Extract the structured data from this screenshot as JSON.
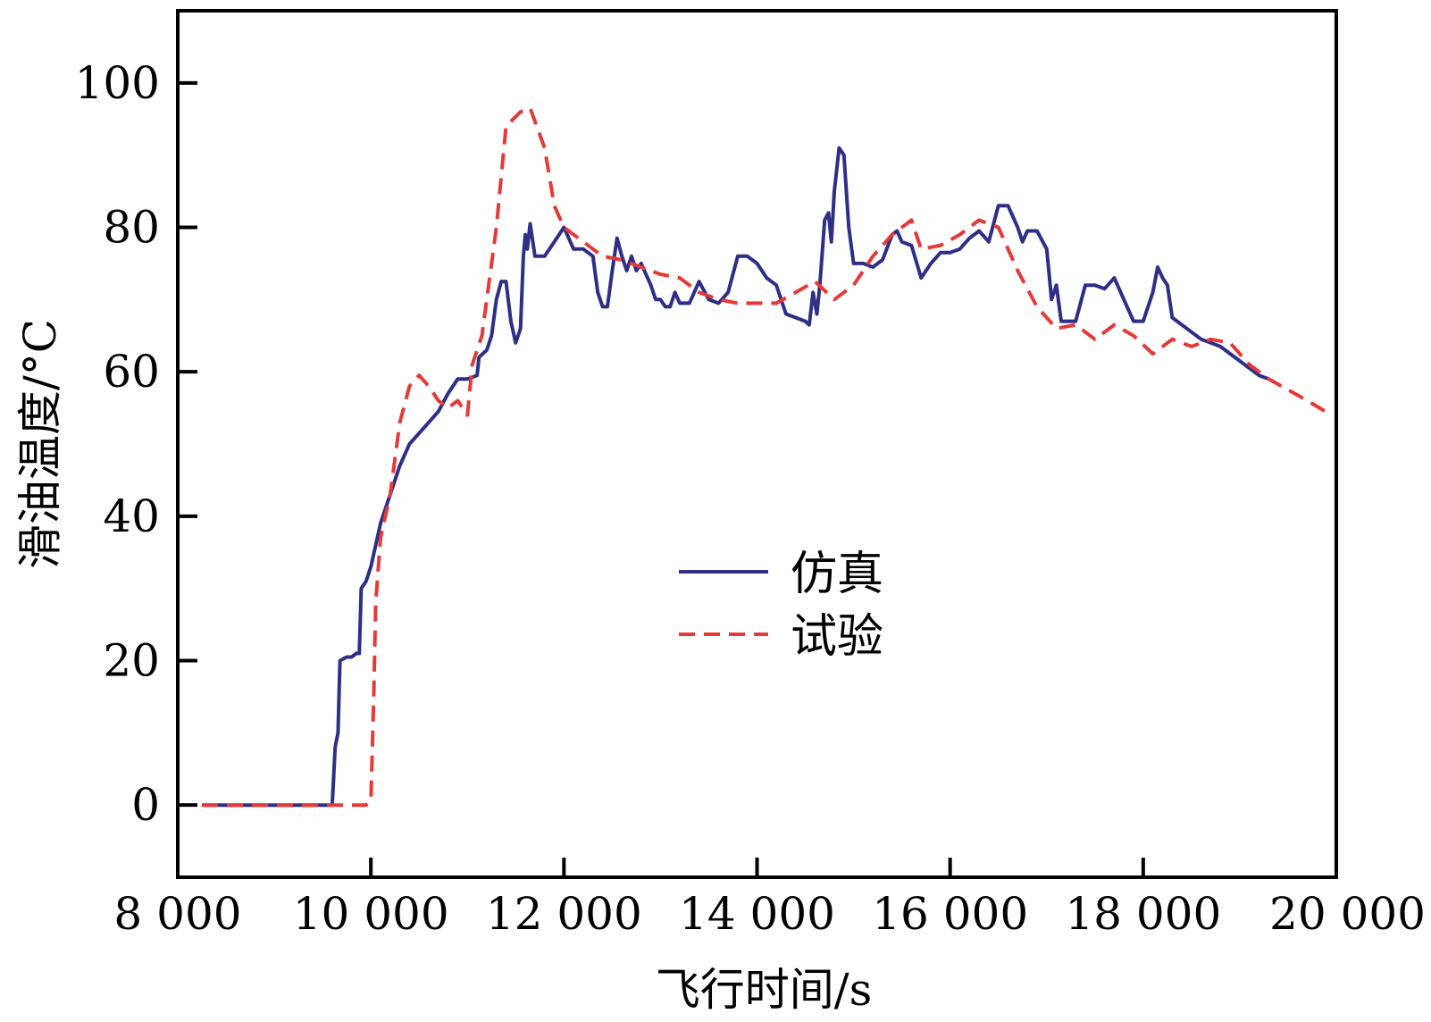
{
  "chart_data": {
    "type": "line",
    "xlabel": "飞行时间/s",
    "ylabel": "滑油温度/°C",
    "xlim": [
      8000,
      20000
    ],
    "ylim": [
      -10,
      110
    ],
    "x_ticks": [
      8000,
      10000,
      12000,
      14000,
      16000,
      18000,
      20000
    ],
    "x_tick_labels": [
      "8 000",
      "10 000",
      "12 000",
      "14 000",
      "16 000",
      "18 000",
      "20 000"
    ],
    "y_ticks": [
      0,
      20,
      40,
      60,
      80,
      100
    ],
    "y_tick_labels": [
      "0",
      "20",
      "40",
      "60",
      "80",
      "100"
    ],
    "grid": false,
    "legend_position": "center",
    "series": [
      {
        "name": "仿真",
        "color": "#2e2f86",
        "style": "solid",
        "points": [
          [
            8250,
            0
          ],
          [
            9600,
            0
          ],
          [
            9630,
            8
          ],
          [
            9660,
            10
          ],
          [
            9680,
            20
          ],
          [
            9750,
            20.5
          ],
          [
            9800,
            20.5
          ],
          [
            9850,
            21
          ],
          [
            9880,
            21
          ],
          [
            9900,
            30
          ],
          [
            9950,
            31
          ],
          [
            10000,
            33
          ],
          [
            10050,
            36
          ],
          [
            10100,
            39
          ],
          [
            10150,
            41
          ],
          [
            10200,
            43
          ],
          [
            10300,
            47
          ],
          [
            10400,
            50
          ],
          [
            10500,
            51.5
          ],
          [
            10600,
            53
          ],
          [
            10700,
            54.5
          ],
          [
            10800,
            57
          ],
          [
            10900,
            59
          ],
          [
            11000,
            59
          ],
          [
            11100,
            59.5
          ],
          [
            11120,
            62
          ],
          [
            11200,
            63
          ],
          [
            11250,
            65
          ],
          [
            11300,
            70
          ],
          [
            11350,
            72.5
          ],
          [
            11400,
            72.5
          ],
          [
            11450,
            67
          ],
          [
            11500,
            64
          ],
          [
            11550,
            66
          ],
          [
            11580,
            76
          ],
          [
            11600,
            79
          ],
          [
            11620,
            77
          ],
          [
            11650,
            80.5
          ],
          [
            11700,
            76
          ],
          [
            11800,
            76
          ],
          [
            11900,
            78
          ],
          [
            12000,
            80
          ],
          [
            12100,
            77
          ],
          [
            12200,
            77
          ],
          [
            12300,
            76
          ],
          [
            12350,
            71
          ],
          [
            12400,
            69
          ],
          [
            12450,
            69
          ],
          [
            12500,
            74
          ],
          [
            12550,
            78.5
          ],
          [
            12600,
            76
          ],
          [
            12650,
            74
          ],
          [
            12700,
            76
          ],
          [
            12750,
            74
          ],
          [
            12800,
            75
          ],
          [
            12900,
            72
          ],
          [
            12950,
            70
          ],
          [
            13000,
            70
          ],
          [
            13050,
            69
          ],
          [
            13100,
            69
          ],
          [
            13150,
            71
          ],
          [
            13200,
            69.5
          ],
          [
            13300,
            69.5
          ],
          [
            13400,
            72.5
          ],
          [
            13500,
            70
          ],
          [
            13600,
            69.5
          ],
          [
            13700,
            71
          ],
          [
            13800,
            76
          ],
          [
            13900,
            76
          ],
          [
            14000,
            75
          ],
          [
            14100,
            73
          ],
          [
            14200,
            72
          ],
          [
            14300,
            68
          ],
          [
            14400,
            67.5
          ],
          [
            14500,
            67
          ],
          [
            14540,
            66.5
          ],
          [
            14580,
            71
          ],
          [
            14620,
            68
          ],
          [
            14650,
            72
          ],
          [
            14700,
            81
          ],
          [
            14740,
            82
          ],
          [
            14770,
            78
          ],
          [
            14800,
            85
          ],
          [
            14850,
            91
          ],
          [
            14900,
            90
          ],
          [
            14950,
            80
          ],
          [
            15000,
            75
          ],
          [
            15100,
            75
          ],
          [
            15200,
            74.5
          ],
          [
            15300,
            75.5
          ],
          [
            15400,
            79
          ],
          [
            15450,
            79.5
          ],
          [
            15500,
            78
          ],
          [
            15600,
            77.5
          ],
          [
            15700,
            73
          ],
          [
            15800,
            75
          ],
          [
            15900,
            76.5
          ],
          [
            16000,
            76.5
          ],
          [
            16100,
            77
          ],
          [
            16200,
            78.5
          ],
          [
            16300,
            79.5
          ],
          [
            16400,
            78
          ],
          [
            16500,
            83
          ],
          [
            16600,
            83
          ],
          [
            16700,
            80
          ],
          [
            16750,
            78
          ],
          [
            16800,
            79.5
          ],
          [
            16900,
            79.5
          ],
          [
            17000,
            77
          ],
          [
            17050,
            70
          ],
          [
            17100,
            72
          ],
          [
            17150,
            67
          ],
          [
            17200,
            67
          ],
          [
            17300,
            67
          ],
          [
            17400,
            72
          ],
          [
            17500,
            72
          ],
          [
            17600,
            71.5
          ],
          [
            17700,
            73
          ],
          [
            17800,
            70
          ],
          [
            17900,
            67
          ],
          [
            18000,
            67
          ],
          [
            18050,
            69
          ],
          [
            18100,
            71
          ],
          [
            18150,
            74.5
          ],
          [
            18200,
            73
          ],
          [
            18250,
            72
          ],
          [
            18300,
            67.5
          ],
          [
            18400,
            66.5
          ],
          [
            18500,
            65.5
          ],
          [
            18600,
            64.5
          ],
          [
            18700,
            64
          ],
          [
            18800,
            63.5
          ],
          [
            18900,
            62.5
          ],
          [
            19000,
            61.5
          ],
          [
            19100,
            60.5
          ],
          [
            19200,
            59.5
          ],
          [
            19300,
            59
          ]
        ]
      },
      {
        "name": "试验",
        "color": "#e53a38",
        "style": "dashed",
        "points": [
          [
            8250,
            0
          ],
          [
            9700,
            0
          ],
          [
            9950,
            0
          ],
          [
            10000,
            0.5
          ],
          [
            10030,
            15
          ],
          [
            10050,
            28
          ],
          [
            10100,
            37
          ],
          [
            10200,
            43
          ],
          [
            10300,
            53
          ],
          [
            10400,
            58
          ],
          [
            10500,
            59.5
          ],
          [
            10600,
            58
          ],
          [
            10700,
            56
          ],
          [
            10800,
            55
          ],
          [
            10900,
            56
          ],
          [
            11000,
            54
          ],
          [
            11050,
            61
          ],
          [
            11150,
            65
          ],
          [
            11300,
            80
          ],
          [
            11400,
            94
          ],
          [
            11550,
            96
          ],
          [
            11650,
            96.5
          ],
          [
            11800,
            91
          ],
          [
            11900,
            83
          ],
          [
            12000,
            80
          ],
          [
            12200,
            78
          ],
          [
            12400,
            76
          ],
          [
            12600,
            75.5
          ],
          [
            12800,
            74.5
          ],
          [
            13000,
            73.5
          ],
          [
            13200,
            73
          ],
          [
            13400,
            71
          ],
          [
            13600,
            70
          ],
          [
            13800,
            69.5
          ],
          [
            14000,
            69.5
          ],
          [
            14200,
            69.5
          ],
          [
            14400,
            71
          ],
          [
            14600,
            72.5
          ],
          [
            14800,
            70
          ],
          [
            15000,
            72
          ],
          [
            15200,
            76
          ],
          [
            15400,
            79
          ],
          [
            15600,
            81
          ],
          [
            15700,
            77
          ],
          [
            15900,
            77.5
          ],
          [
            16100,
            79
          ],
          [
            16300,
            81
          ],
          [
            16500,
            80
          ],
          [
            16700,
            74
          ],
          [
            16900,
            69
          ],
          [
            17100,
            66
          ],
          [
            17300,
            66.5
          ],
          [
            17500,
            64.5
          ],
          [
            17700,
            66.5
          ],
          [
            17900,
            65
          ],
          [
            18100,
            62.5
          ],
          [
            18300,
            64.5
          ],
          [
            18500,
            63.5
          ],
          [
            18700,
            64.5
          ],
          [
            18900,
            64
          ],
          [
            19100,
            61
          ],
          [
            19300,
            59
          ],
          [
            19500,
            57.5
          ],
          [
            19700,
            56
          ],
          [
            19950,
            54
          ]
        ]
      }
    ]
  }
}
